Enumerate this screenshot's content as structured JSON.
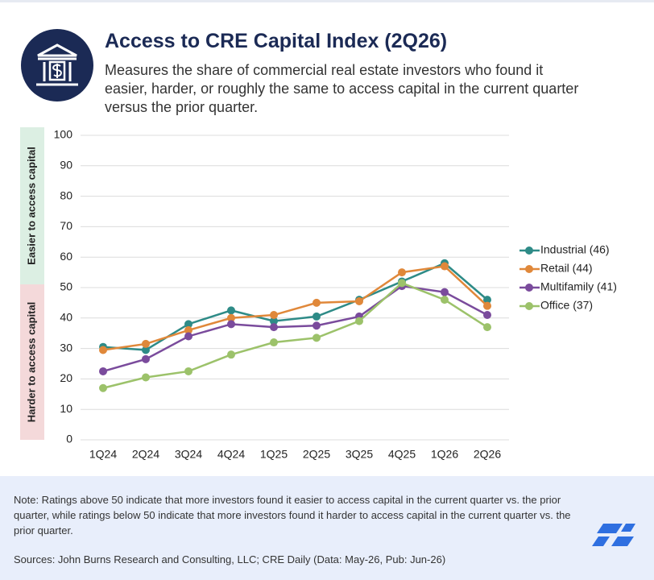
{
  "chart_data": {
    "type": "line",
    "title": "Access to CRE Capital Index (2Q26)",
    "subtitle": "Measures the share of commercial real estate investors who found it easier, harder, or roughly the same to access capital in the current quarter versus the prior quarter.",
    "categories": [
      "1Q24",
      "2Q24",
      "3Q24",
      "4Q24",
      "1Q25",
      "2Q25",
      "3Q25",
      "4Q25",
      "1Q26",
      "2Q26"
    ],
    "series": [
      {
        "name": "Industrial (46)",
        "color": "#2e8b87",
        "values": [
          30.5,
          29.5,
          38,
          42.5,
          39,
          40.5,
          46,
          52,
          58,
          46
        ]
      },
      {
        "name": "Retail (44)",
        "color": "#e0883a",
        "values": [
          29.5,
          31.5,
          36,
          40,
          41,
          45,
          45.5,
          55,
          57,
          44
        ]
      },
      {
        "name": "Multifamily (41)",
        "color": "#7a4b9c",
        "values": [
          22.5,
          26.5,
          34,
          38,
          37,
          37.5,
          40.5,
          50.5,
          48.5,
          41
        ]
      },
      {
        "name": "Office (37)",
        "color": "#9cc26a",
        "values": [
          17,
          20.5,
          22.5,
          28,
          32,
          33.5,
          39,
          51.5,
          46,
          37
        ]
      }
    ],
    "ylim": [
      0,
      100
    ],
    "yticks": [
      0,
      10,
      20,
      30,
      40,
      50,
      60,
      70,
      80,
      90,
      100
    ],
    "grid": true,
    "legend": "right",
    "zones": [
      {
        "label": "Easier to access capital",
        "from": 50,
        "to": 100,
        "color": "#dcefe3",
        "text_color": "#2e9a6b"
      },
      {
        "label": "Harder to access capital",
        "from": 0,
        "to": 50,
        "color": "#f4d9da",
        "text_color": "#c0464f"
      }
    ]
  },
  "footer": {
    "note": "Note: Ratings above 50 indicate that more investors found it easier to access capital in the current quarter vs. the prior quarter, while ratings below 50 indicate that more investors found it harder to access capital in the current quarter vs. the prior quarter.",
    "sources": "Sources: John Burns Research and Consulting, LLC; CRE Daily (Data: May-26, Pub: Jun-26)"
  }
}
